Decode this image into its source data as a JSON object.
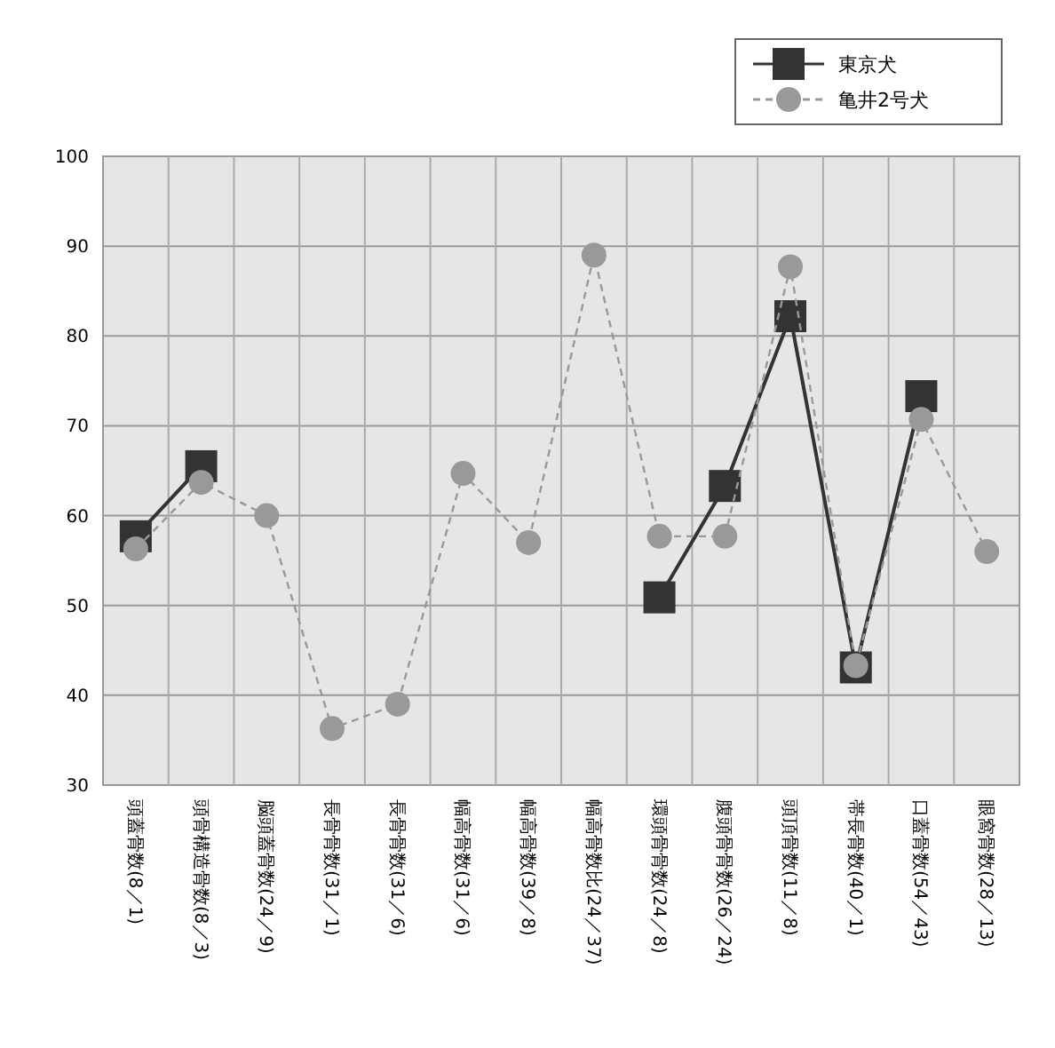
{
  "chart_data": {
    "type": "line",
    "categories": [
      "頭蓋骨数(8／1)",
      "頭骨構造骨数(8／3)",
      "脳頭蓋骨数(24／9)",
      "長骨骨数(31／1)",
      "長骨骨数(31／6)",
      "幅高骨数(31／6)",
      "幅高骨数(39／8)",
      "幅高骨数比(24／37)",
      "環頭骨骨数(24／8)",
      "腹頭骨骨数(26／24)",
      "頭頂骨数(11／8)",
      "帯長骨数(40／1)",
      "口蓋骨数(54／43)",
      "眼窩骨数(28／13)"
    ],
    "series": [
      {
        "name": "東京犬",
        "color": "#333333",
        "marker": "square",
        "line_style": "solid",
        "values": [
          57.7,
          65.5,
          null,
          null,
          null,
          null,
          null,
          null,
          50.9,
          63.3,
          82.2,
          43.1,
          73.3,
          null
        ]
      },
      {
        "name": "亀井2号犬",
        "color": "#999999",
        "marker": "circle",
        "line_style": "dashed",
        "values": [
          56.3,
          63.7,
          60,
          36.3,
          39,
          64.7,
          57,
          89,
          57.7,
          57.7,
          87.7,
          43.3,
          70.7,
          56
        ]
      }
    ],
    "ylim": [
      30,
      100
    ],
    "yticks": [
      30,
      40,
      50,
      60,
      70,
      80,
      90,
      100
    ],
    "grid": true,
    "legend": "top right"
  }
}
